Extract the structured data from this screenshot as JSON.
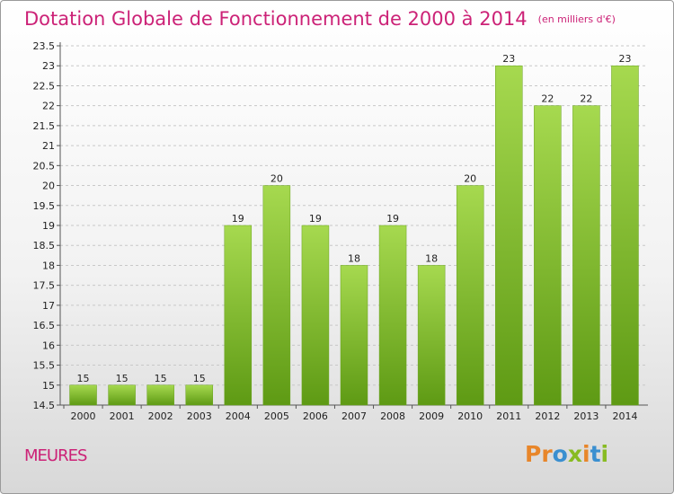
{
  "header": {
    "title": "Dotation Globale de Fonctionnement de 2000 à 2014",
    "subtitle": "(en milliers d'€)"
  },
  "footer": {
    "commune": "MEURES",
    "logo": "Proxiti",
    "logo_colors": [
      "#e8862a",
      "#e8862a",
      "#3a8fd0",
      "#88bb22",
      "#e8862a",
      "#3a8fd0",
      "#88bb22"
    ]
  },
  "chart_data": {
    "type": "bar",
    "title": "Dotation Globale de Fonctionnement de 2000 à 2014",
    "subtitle": "(en milliers d'€)",
    "xlabel": "",
    "ylabel": "",
    "categories": [
      "2000",
      "2001",
      "2002",
      "2003",
      "2004",
      "2005",
      "2006",
      "2007",
      "2008",
      "2009",
      "2010",
      "2011",
      "2012",
      "2013",
      "2014"
    ],
    "values": [
      15,
      15,
      15,
      15,
      19,
      20,
      19,
      18,
      19,
      18,
      20,
      23,
      22,
      22,
      23
    ],
    "value_labels": [
      "15",
      "15",
      "15",
      "15",
      "19",
      "20",
      "19",
      "18",
      "19",
      "18",
      "20",
      "23",
      "22",
      "22",
      "23"
    ],
    "ylim": [
      14.5,
      23.5
    ],
    "yticks": [
      "14.5",
      "15",
      "15.5",
      "16",
      "16.5",
      "17",
      "17.5",
      "18",
      "18.5",
      "19",
      "19.5",
      "20",
      "20.5",
      "21",
      "21.5",
      "22",
      "22.5",
      "23",
      "23.5"
    ],
    "grid": "horizontal-dashed",
    "bar_color": "#7fbf2a",
    "bar_color_light": "#a6d94f"
  }
}
